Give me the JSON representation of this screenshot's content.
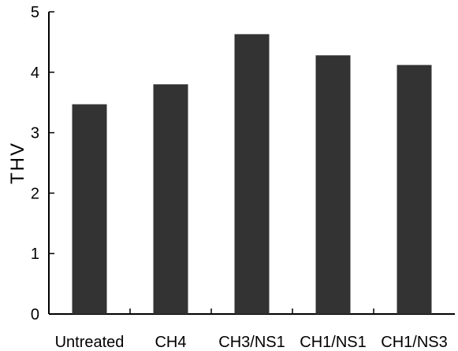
{
  "chart_data": {
    "type": "bar",
    "categories": [
      "Untreated",
      "CH4",
      "CH3/NS1",
      "CH1/NS1",
      "CH1/NS3"
    ],
    "values": [
      3.47,
      3.8,
      4.63,
      4.28,
      4.12
    ],
    "xlabel": "",
    "ylabel": "THV",
    "ylim": [
      0,
      5
    ],
    "yticks": [
      0,
      1,
      2,
      3,
      4,
      5
    ],
    "grid": false,
    "legend": "none",
    "bar_color": "#333333"
  }
}
